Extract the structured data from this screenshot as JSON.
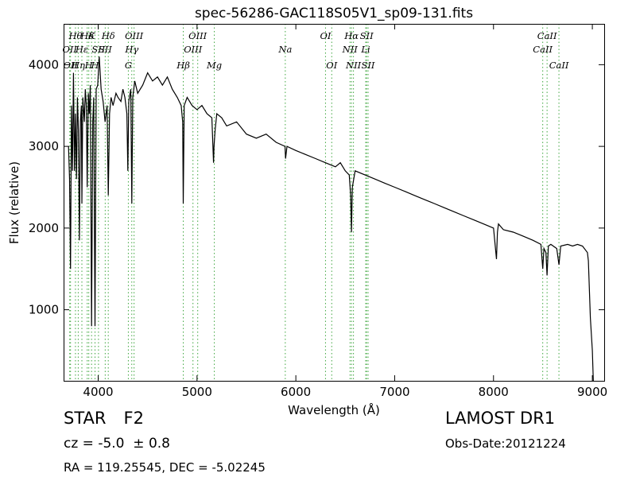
{
  "chart_data": {
    "type": "line",
    "title": "spec-56286-GAC118S05V1_sp09-131.fits",
    "xlabel": "Wavelength (Å)",
    "ylabel": "Flux (relative)",
    "xlim": [
      3650,
      9120
    ],
    "ylim": [
      130,
      4500
    ],
    "xticks": [
      4000,
      5000,
      6000,
      7000,
      8000,
      9000
    ],
    "yticks": [
      1000,
      2000,
      3000,
      4000
    ],
    "grid": false,
    "series": [
      {
        "color": "#000000",
        "x": [
          3700,
          3710,
          3720,
          3730,
          3740,
          3750,
          3760,
          3770,
          3780,
          3790,
          3800,
          3810,
          3820,
          3830,
          3835,
          3845,
          3860,
          3870,
          3880,
          3889,
          3900,
          3910,
          3920,
          3933,
          3945,
          3955,
          3968,
          3980,
          3995,
          4010,
          4030,
          4050,
          4070,
          4090,
          4102,
          4115,
          4130,
          4150,
          4180,
          4200,
          4230,
          4250,
          4270,
          4290,
          4300,
          4310,
          4330,
          4340,
          4350,
          4370,
          4400,
          4450,
          4500,
          4550,
          4600,
          4650,
          4700,
          4750,
          4800,
          4840,
          4855,
          4861,
          4870,
          4900,
          4950,
          5000,
          5050,
          5100,
          5150,
          5167,
          5172,
          5183,
          5200,
          5250,
          5300,
          5400,
          5500,
          5600,
          5700,
          5800,
          5890,
          5896,
          5910,
          6000,
          6100,
          6200,
          6300,
          6400,
          6450,
          6500,
          6540,
          6555,
          6563,
          6572,
          6600,
          6700,
          6800,
          6900,
          7000,
          7100,
          7200,
          7300,
          7400,
          7500,
          7600,
          7700,
          7800,
          7900,
          8000,
          8030,
          8040,
          8050,
          8100,
          8200,
          8300,
          8400,
          8480,
          8498,
          8510,
          8530,
          8542,
          8555,
          8580,
          8640,
          8662,
          8680,
          8750,
          8800,
          8850,
          8900,
          8950,
          8960,
          8980,
          9000,
          9010
        ],
        "y": [
          3000,
          2600,
          1500,
          3500,
          2700,
          3900,
          2700,
          3400,
          2600,
          3600,
          3200,
          1850,
          3300,
          3500,
          2300,
          3600,
          3300,
          3700,
          3500,
          2500,
          3650,
          3400,
          3750,
          800,
          3300,
          3600,
          800,
          3700,
          3750,
          4100,
          3700,
          3550,
          3300,
          3500,
          2400,
          3400,
          3600,
          3500,
          3650,
          3600,
          3550,
          3700,
          3600,
          3400,
          2700,
          3550,
          3700,
          2300,
          3600,
          3800,
          3650,
          3750,
          3900,
          3800,
          3850,
          3750,
          3850,
          3700,
          3600,
          3500,
          3300,
          2300,
          3500,
          3600,
          3500,
          3450,
          3500,
          3400,
          3350,
          2800,
          3000,
          3200,
          3400,
          3350,
          3250,
          3300,
          3150,
          3100,
          3150,
          3050,
          3000,
          2850,
          3000,
          2950,
          2900,
          2850,
          2800,
          2750,
          2800,
          2700,
          2650,
          2400,
          1950,
          2500,
          2700,
          2650,
          2600,
          2550,
          2500,
          2450,
          2400,
          2350,
          2300,
          2250,
          2200,
          2150,
          2100,
          2050,
          2000,
          1620,
          1950,
          2050,
          1980,
          1950,
          1900,
          1850,
          1800,
          1500,
          1750,
          1700,
          1420,
          1780,
          1800,
          1750,
          1550,
          1780,
          1800,
          1780,
          1800,
          1780,
          1700,
          1600,
          900,
          500,
          130
        ]
      }
    ],
    "line_markers": [
      {
        "x": 3712,
        "label": "OII",
        "row": 2
      },
      {
        "x": 3720,
        "label": "OII",
        "row": 3
      },
      {
        "x": 3770,
        "label": "Hθ",
        "row": 1
      },
      {
        "x": 3798,
        "label": "Hη",
        "row": 3
      },
      {
        "x": 3835,
        "label": "Hε",
        "row": 2
      },
      {
        "x": 3889,
        "label": "Hδ",
        "row": 1
      },
      {
        "x": 3905,
        "label": "H",
        "row": 3
      },
      {
        "x": 3933,
        "label": "K",
        "row": 1
      },
      {
        "x": 3968,
        "label": "H",
        "row": 3
      },
      {
        "x": 4003,
        "label": "SII",
        "row": 2
      },
      {
        "x": 4071,
        "label": "SII",
        "row": 2
      },
      {
        "x": 4102,
        "label": "Hδ",
        "row": 1
      },
      {
        "x": 4305,
        "label": "G",
        "row": 3
      },
      {
        "x": 4340,
        "label": "Hγ",
        "row": 2
      },
      {
        "x": 4363,
        "label": "OIII",
        "row": 1
      },
      {
        "x": 4861,
        "label": "Hβ",
        "row": 3
      },
      {
        "x": 4959,
        "label": "OIII",
        "row": 2
      },
      {
        "x": 5007,
        "label": "OIII",
        "row": 1
      },
      {
        "x": 5175,
        "label": "Mg",
        "row": 3
      },
      {
        "x": 5893,
        "label": "Na",
        "row": 2
      },
      {
        "x": 6300,
        "label": "OI",
        "row": 1
      },
      {
        "x": 6363,
        "label": "OI",
        "row": 3
      },
      {
        "x": 6548,
        "label": "NII",
        "row": 2
      },
      {
        "x": 6563,
        "label": "Hα",
        "row": 1
      },
      {
        "x": 6583,
        "label": "NII",
        "row": 3
      },
      {
        "x": 6707,
        "label": "Li",
        "row": 2
      },
      {
        "x": 6716,
        "label": "SII",
        "row": 1
      },
      {
        "x": 6731,
        "label": "SII",
        "row": 3
      },
      {
        "x": 8498,
        "label": "CaII",
        "row": 2
      },
      {
        "x": 8542,
        "label": "CaII",
        "row": 1
      },
      {
        "x": 8662,
        "label": "CaII",
        "row": 3
      }
    ]
  },
  "info": {
    "class": "STAR",
    "subclass": "F2",
    "survey": "LAMOST DR1",
    "cz": "cz = -5.0  ± 0.8",
    "obs_date": "Obs-Date:20121224",
    "coords": "RA = 119.25545, DEC = -5.02245"
  }
}
